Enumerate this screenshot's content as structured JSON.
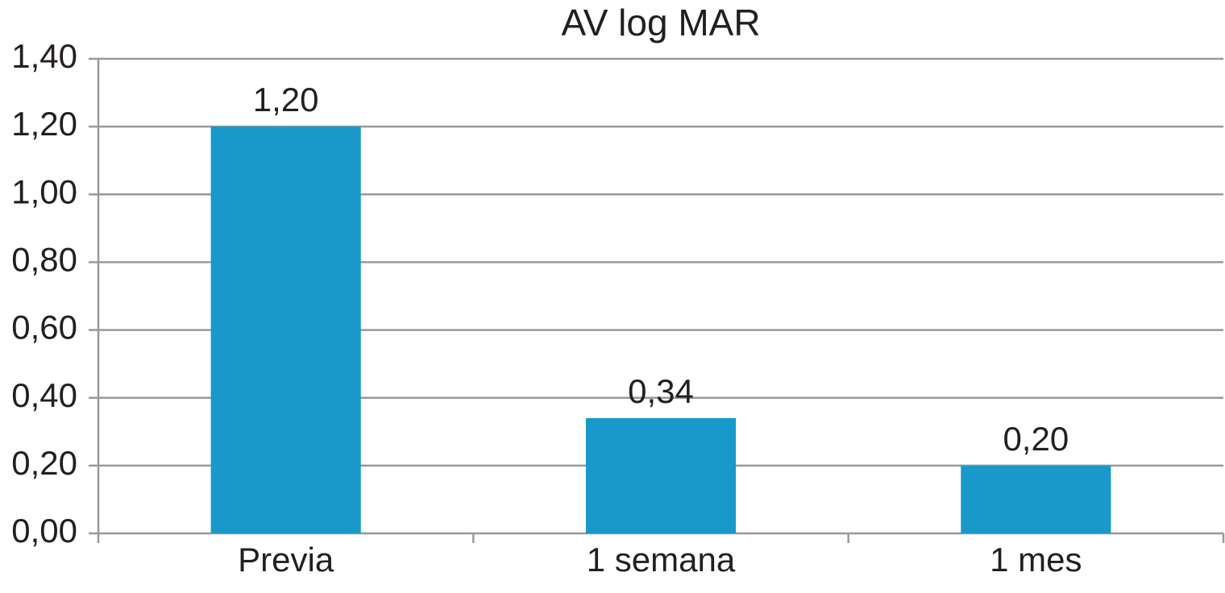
{
  "chart_data": {
    "type": "bar",
    "title": "AV log MAR",
    "categories": [
      "Previa",
      "1 semana",
      "1 mes"
    ],
    "values": [
      1.2,
      0.34,
      0.2
    ],
    "value_labels": [
      "1,20",
      "0,34",
      "0,20"
    ],
    "color": "#1899c9",
    "ylim": [
      0,
      1.4
    ],
    "yticks": [
      {
        "value": 0,
        "label": "0,00"
      },
      {
        "value": 0.2,
        "label": "0,20"
      },
      {
        "value": 0.4,
        "label": "0,40"
      },
      {
        "value": 0.6,
        "label": "0,60"
      },
      {
        "value": 0.8,
        "label": "0,80"
      },
      {
        "value": 1.0,
        "label": "1,00"
      },
      {
        "value": 1.2,
        "label": "1,20"
      },
      {
        "value": 1.4,
        "label": "1,40"
      }
    ],
    "grid": true
  }
}
